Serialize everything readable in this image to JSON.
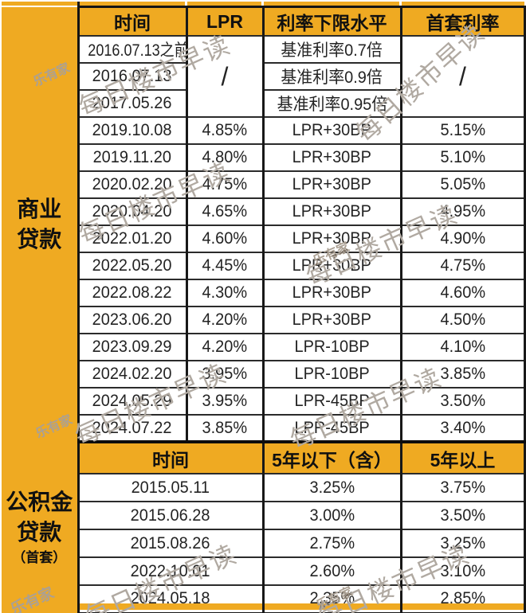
{
  "chart_data": [
    {
      "type": "table",
      "title": "商业贷款",
      "columns": [
        "时间",
        "LPR",
        "利率下限水平",
        "首套利率"
      ],
      "rows": [
        [
          "2016.07.13之前",
          "/",
          "基准利率0.7倍",
          "/"
        ],
        [
          "2016.07.13",
          "/",
          "基准利率0.9倍",
          "/"
        ],
        [
          "2017.05.26",
          "/",
          "基准利率0.95倍",
          "/"
        ],
        [
          "2019.10.08",
          "4.85%",
          "LPR+30BP",
          "5.15%"
        ],
        [
          "2019.11.20",
          "4.80%",
          "LPR+30BP",
          "5.10%"
        ],
        [
          "2020.02.20",
          "4.75%",
          "LPR+30BP",
          "5.05%"
        ],
        [
          "2020.04.20",
          "4.65%",
          "LPR+30BP",
          "4.95%"
        ],
        [
          "2022.01.20",
          "4.60%",
          "LPR+30BP",
          "4.90%"
        ],
        [
          "2022.05.20",
          "4.45%",
          "LPR+30BP",
          "4.75%"
        ],
        [
          "2022.08.22",
          "4.30%",
          "LPR+30BP",
          "4.60%"
        ],
        [
          "2023.06.20",
          "4.20%",
          "LPR+30BP",
          "4.50%"
        ],
        [
          "2023.09.29",
          "4.20%",
          "LPR-10BP",
          "4.10%"
        ],
        [
          "2024.02.20",
          "3.95%",
          "LPR-10BP",
          "3.85%"
        ],
        [
          "2024.05.29",
          "3.95%",
          "LPR-45BP",
          "3.50%"
        ],
        [
          "2024.07.22",
          "3.85%",
          "LPR-45BP",
          "3.40%"
        ]
      ],
      "merges": {
        "lpr_slash_rows": [
          0,
          1,
          2
        ],
        "first_rate_slash_rows": [
          0,
          1,
          2
        ],
        "slash_symbol": "/"
      }
    },
    {
      "type": "table",
      "title": "公积金贷款（首套）",
      "columns": [
        "时间",
        "5年以下（含）",
        "5年以上"
      ],
      "rows": [
        [
          "2015.05.11",
          "3.25%",
          "3.75%"
        ],
        [
          "2015.06.28",
          "3.00%",
          "3.50%"
        ],
        [
          "2015.08.26",
          "2.75%",
          "3.25%"
        ],
        [
          "2022.10.01",
          "2.60%",
          "3.10%"
        ],
        [
          "2024.05.18",
          "2.35%",
          "2.85%"
        ]
      ]
    }
  ],
  "side_labels": {
    "section1_lines": [
      "商业",
      "贷款"
    ],
    "section2_lines": [
      "公积金",
      "贷款"
    ],
    "section2_small": "（首套）"
  },
  "watermark": {
    "text": "每日楼市早读",
    "logo": "乐有家"
  },
  "colors": {
    "header_yellow": "#EFAA22",
    "border_black": "#1a1a1a",
    "cell_text": "#232323",
    "watermark_gray": "#b0a9a1"
  }
}
